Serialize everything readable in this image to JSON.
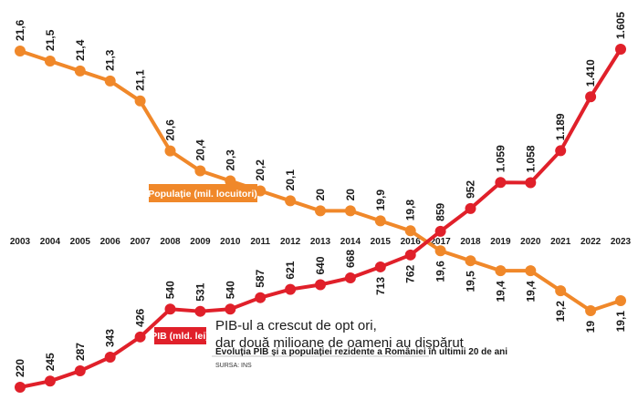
{
  "chart_data": {
    "type": "line",
    "x": [
      "2003",
      "2004",
      "2005",
      "2006",
      "2007",
      "2008",
      "2009",
      "2010",
      "2011",
      "2012",
      "2013",
      "2014",
      "2015",
      "2016",
      "2017",
      "2018",
      "2019",
      "2020",
      "2021",
      "2022",
      "2023"
    ],
    "series": [
      {
        "name": "Populație (mil. locuitori)",
        "color": "#F0882A",
        "values": [
          21.6,
          21.5,
          21.4,
          21.3,
          21.1,
          20.6,
          20.4,
          20.3,
          20.2,
          20.1,
          20,
          20,
          19.9,
          19.8,
          19.6,
          19.5,
          19.4,
          19.4,
          19.2,
          19,
          19.1
        ],
        "labels": [
          "21,6",
          "21,5",
          "21,4",
          "21,3",
          "21,1",
          "20,6",
          "20,4",
          "20,3",
          "20,2",
          "20,1",
          "20",
          "20",
          "19,9",
          "19,8",
          "19,6",
          "19,5",
          "19,4",
          "19,4",
          "19,2",
          "19",
          "19,1"
        ]
      },
      {
        "name": "PIB (mld. lei)",
        "color": "#E0202A",
        "values": [
          220,
          245,
          287,
          343,
          426,
          540,
          531,
          540,
          587,
          621,
          640,
          668,
          713,
          762,
          859,
          952,
          1059,
          1058,
          1189,
          1410,
          1605
        ],
        "labels": [
          "220",
          "245",
          "287",
          "343",
          "426",
          "540",
          "531",
          "540",
          "587",
          "621",
          "640",
          "668",
          "713",
          "762",
          "859",
          "952",
          "1.059",
          "1.058",
          "1.189",
          "1.410",
          "1.605"
        ]
      }
    ],
    "title": "PIB-ul a crescut de opt ori,",
    "title_line2": "dar două milioane de oameni au dispărut",
    "subtitle": "Evoluția PIB și a populației rezidente a României în ultimii 20 de ani",
    "source": "SURSA: INS"
  }
}
